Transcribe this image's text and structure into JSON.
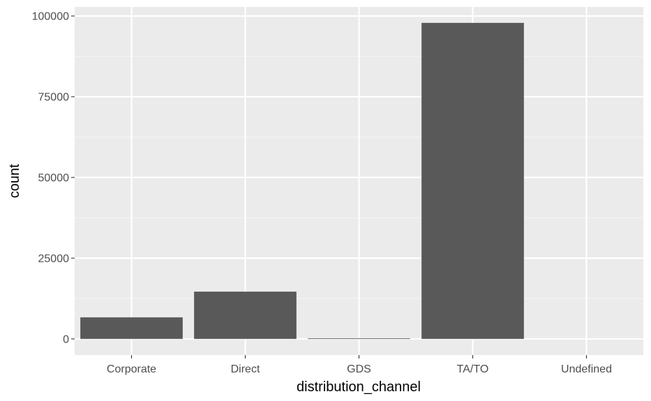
{
  "chart_data": {
    "type": "bar",
    "title": "",
    "xlabel": "distribution_channel",
    "ylabel": "count",
    "categories": [
      "Corporate",
      "Direct",
      "GDS",
      "TA/TO",
      "Undefined"
    ],
    "values": [
      6677,
      14645,
      193,
      97870,
      1
    ],
    "ylim": [
      -5000,
      102800
    ],
    "yticks": [
      0,
      25000,
      50000,
      75000,
      100000
    ],
    "ytick_labels": [
      "0",
      "25000",
      "50000",
      "75000",
      "100000"
    ],
    "grid": true,
    "legend": "none",
    "colors": {
      "panel_background": "#ebebeb",
      "grid_major": "#ffffff",
      "grid_minor": "#f5f5f5",
      "bar_fill": "#595959",
      "tick_text": "#4d4d4d",
      "title_text": "#000000"
    }
  }
}
